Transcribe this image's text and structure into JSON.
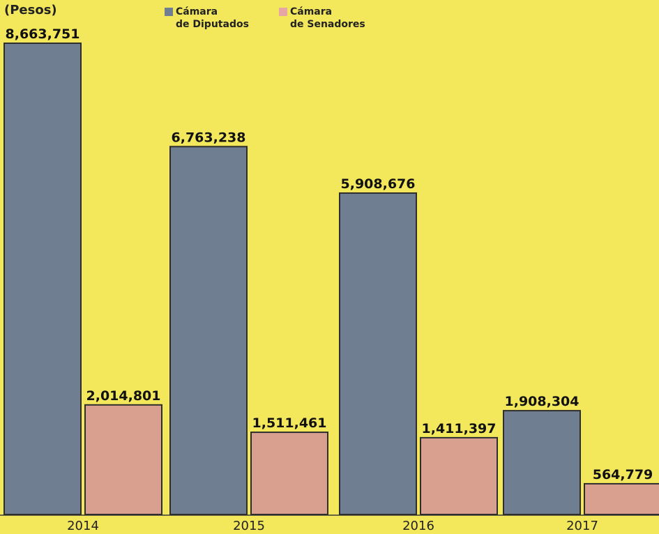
{
  "chart_data": {
    "type": "bar",
    "unit_label": "(Pesos)",
    "categories": [
      "2014",
      "2015",
      "2016",
      "2017"
    ],
    "series": [
      {
        "name": "Cámara de Diputados",
        "legend_lines": [
          "Cámara",
          "de Diputados"
        ],
        "color": "#6f7f91",
        "values": [
          8663751,
          6763238,
          5908676,
          1908304
        ],
        "value_labels": [
          "8,663,751",
          "6,763,238",
          "5,908,676",
          "1,908,304"
        ]
      },
      {
        "name": "Cámara de Senadores",
        "legend_lines": [
          "Cámara",
          "de Senadores"
        ],
        "color": "#d9a090",
        "values": [
          2014801,
          1511461,
          1411397,
          564779
        ],
        "value_labels": [
          "2,014,801",
          "1,511,461",
          "1,411,397",
          "564,779"
        ]
      }
    ],
    "ylim": [
      0,
      8663751
    ],
    "grid": false,
    "legend_position": "top-center"
  }
}
